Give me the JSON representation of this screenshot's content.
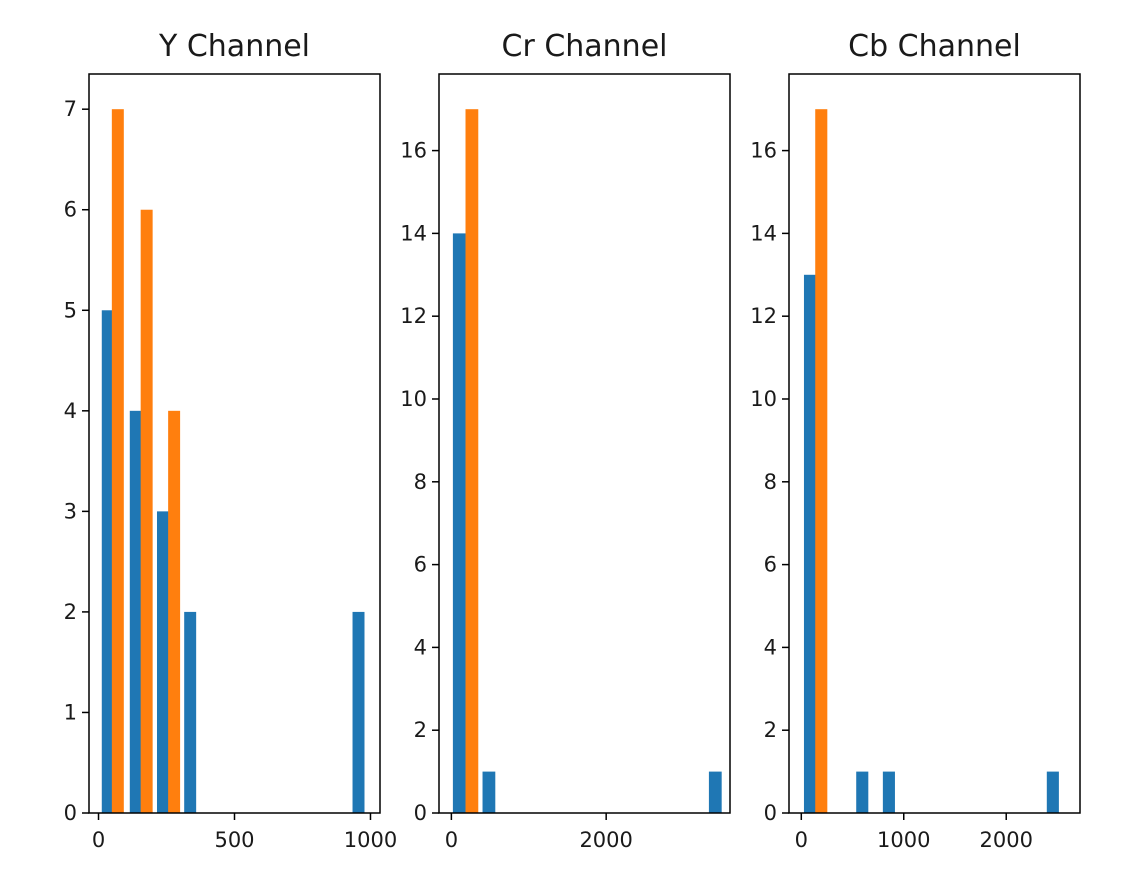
{
  "colors": {
    "series_a": "#1f77b4",
    "series_b": "#ff7f0e"
  },
  "chart_data": [
    {
      "type": "bar",
      "title": "Y Channel",
      "xlabel": "",
      "ylabel": "",
      "xlim": [
        -35,
        1035
      ],
      "ylim": [
        0,
        7.35
      ],
      "xticks": [
        0,
        500,
        1000
      ],
      "yticks": [
        0,
        1,
        2,
        3,
        4,
        5,
        6,
        7
      ],
      "bar_width": 44,
      "series": [
        {
          "color": "#1f77b4",
          "x": [
            34,
            137,
            237,
            337,
            956
          ],
          "values": [
            5,
            4,
            3,
            2,
            2
          ]
        },
        {
          "color": "#ff7f0e",
          "x": [
            71,
            177,
            278
          ],
          "values": [
            7,
            6,
            4
          ]
        }
      ]
    },
    {
      "type": "bar",
      "title": "Cr Channel",
      "xlabel": "",
      "ylabel": "",
      "xlim": [
        -160,
        3600
      ],
      "ylim": [
        0,
        17.85
      ],
      "xticks": [
        0,
        2000
      ],
      "yticks": [
        0,
        2,
        4,
        6,
        8,
        10,
        12,
        14,
        16
      ],
      "bar_width": 165,
      "series": [
        {
          "color": "#1f77b4",
          "x": [
            102,
            485,
            3410
          ],
          "values": [
            14,
            1,
            1
          ]
        },
        {
          "color": "#ff7f0e",
          "x": [
            265
          ],
          "values": [
            17
          ]
        }
      ]
    },
    {
      "type": "bar",
      "title": "Cb Channel",
      "xlabel": "",
      "ylabel": "",
      "xlim": [
        -120,
        2720
      ],
      "ylim": [
        0,
        17.85
      ],
      "xticks": [
        0,
        1000,
        2000
      ],
      "yticks": [
        0,
        2,
        4,
        6,
        8,
        10,
        12,
        14,
        16
      ],
      "bar_width": 118,
      "series": [
        {
          "color": "#1f77b4",
          "x": [
            85,
            595,
            855,
            2455
          ],
          "values": [
            13,
            1,
            1,
            1
          ]
        },
        {
          "color": "#ff7f0e",
          "x": [
            195
          ],
          "values": [
            17
          ]
        }
      ]
    }
  ]
}
